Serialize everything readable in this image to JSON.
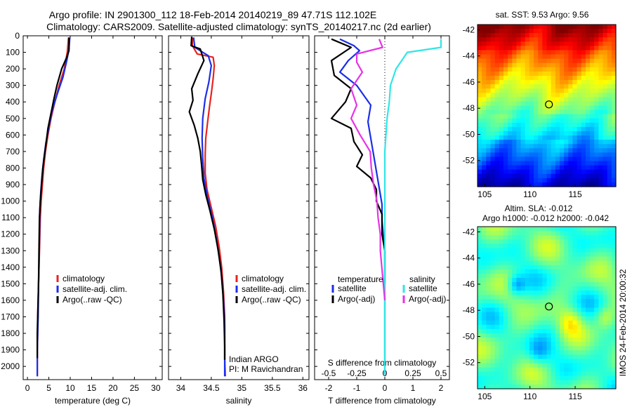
{
  "header": {
    "title_line1": "Argo profile: IN 2901300_112 18-Feb-2014 20140219_89 47.71S 112.102E",
    "title_line2": "Climatology: CARS2009. Satellite-adjusted climatology: synTS_20140217.nc (2d earlier)"
  },
  "colors": {
    "climatology": "#e8231e",
    "satellite": "#1b2ee8",
    "argo": "#000000",
    "satellite_s": "#2fe6e6",
    "argo_s": "#e633e6"
  },
  "depth_ticks": [
    0,
    100,
    200,
    300,
    400,
    500,
    600,
    700,
    800,
    900,
    1000,
    1100,
    1200,
    1300,
    1400,
    1500,
    1600,
    1700,
    1800,
    1900,
    2000
  ],
  "chart_data": [
    {
      "type": "line",
      "id": "temperature",
      "xlabel": "temperature (deg C)",
      "xlim": [
        -1,
        31.5
      ],
      "ylim": [
        2080,
        0
      ],
      "xticks": [
        0,
        5,
        10,
        15,
        20,
        25,
        30
      ],
      "legend": [
        "climatology",
        "satellite-adj. clim.",
        "Argo(..raw -QC)"
      ],
      "legend_placement": "lower-right",
      "series": [
        {
          "name": "climatology",
          "color_key": "climatology",
          "points": [
            [
              9.6,
              10
            ],
            [
              9.3,
              100
            ],
            [
              8.6,
              200
            ],
            [
              7.4,
              300
            ],
            [
              6.4,
              400
            ],
            [
              5.5,
              500
            ],
            [
              4.8,
              600
            ],
            [
              4.2,
              700
            ],
            [
              3.8,
              800
            ],
            [
              3.5,
              900
            ],
            [
              3.2,
              1000
            ],
            [
              3.0,
              1100
            ],
            [
              2.9,
              1200
            ],
            [
              2.8,
              1300
            ],
            [
              2.7,
              1400
            ],
            [
              2.6,
              1500
            ],
            [
              2.5,
              1600
            ],
            [
              2.4,
              1700
            ],
            [
              2.4,
              1800
            ],
            [
              2.3,
              1900
            ],
            [
              2.3,
              2000
            ],
            [
              2.3,
              2060
            ]
          ]
        },
        {
          "name": "satellite-adj. clim.",
          "color_key": "satellite",
          "points": [
            [
              9.9,
              10
            ],
            [
              9.7,
              80
            ],
            [
              9.2,
              150
            ],
            [
              8.3,
              250
            ],
            [
              7.0,
              350
            ],
            [
              5.8,
              450
            ],
            [
              5.0,
              550
            ],
            [
              4.3,
              650
            ],
            [
              3.8,
              750
            ],
            [
              3.4,
              850
            ],
            [
              3.1,
              950
            ],
            [
              2.9,
              1050
            ],
            [
              2.8,
              1200
            ],
            [
              2.7,
              1400
            ],
            [
              2.6,
              1500
            ],
            [
              2.5,
              1700
            ],
            [
              2.4,
              1800
            ],
            [
              2.3,
              1900
            ],
            [
              2.3,
              2000
            ],
            [
              2.3,
              2060
            ]
          ]
        },
        {
          "name": "Argo(..raw -QC)",
          "color_key": "argo",
          "points": [
            [
              9.7,
              10
            ],
            [
              9.7,
              90
            ],
            [
              9.2,
              130
            ],
            [
              8.0,
              200
            ],
            [
              6.9,
              300
            ],
            [
              6.2,
              380
            ],
            [
              5.5,
              470
            ],
            [
              4.8,
              560
            ],
            [
              4.1,
              700
            ],
            [
              3.6,
              800
            ],
            [
              3.3,
              900
            ],
            [
              3.0,
              1000
            ],
            [
              2.8,
              1100
            ],
            [
              2.7,
              1300
            ],
            [
              2.6,
              1500
            ],
            [
              2.5,
              1600
            ],
            [
              2.4,
              1700
            ],
            [
              2.3,
              1800
            ],
            [
              2.3,
              1950
            ]
          ]
        }
      ]
    },
    {
      "type": "line",
      "id": "salinity",
      "xlabel": "salinity",
      "xlim": [
        33.8,
        36.1
      ],
      "ylim": [
        2080,
        0
      ],
      "xticks": [
        34,
        34.5,
        35,
        35.5,
        36
      ],
      "legend": [
        "climatology",
        "satellite-adj. clim.",
        "Argo(..raw -QC)"
      ],
      "legend_placement": "lower-right",
      "annotation": [
        "Indian ARGO",
        "PI: M Ravichandran"
      ],
      "series": [
        {
          "name": "climatology",
          "color_key": "climatology",
          "points": [
            [
              34.19,
              10
            ],
            [
              34.19,
              60
            ],
            [
              34.27,
              110
            ],
            [
              34.53,
              130
            ],
            [
              34.55,
              180
            ],
            [
              34.53,
              260
            ],
            [
              34.5,
              350
            ],
            [
              34.47,
              430
            ],
            [
              34.44,
              520
            ],
            [
              34.41,
              620
            ],
            [
              34.4,
              720
            ],
            [
              34.4,
              830
            ],
            [
              34.43,
              930
            ],
            [
              34.5,
              1040
            ],
            [
              34.57,
              1150
            ],
            [
              34.63,
              1280
            ],
            [
              34.67,
              1400
            ],
            [
              34.7,
              1550
            ],
            [
              34.72,
              1700
            ],
            [
              34.72,
              1850
            ],
            [
              34.72,
              1950
            ],
            [
              34.73,
              2060
            ]
          ]
        },
        {
          "name": "satellite-adj. clim.",
          "color_key": "satellite",
          "points": [
            [
              34.21,
              10
            ],
            [
              34.23,
              70
            ],
            [
              34.45,
              120
            ],
            [
              34.5,
              180
            ],
            [
              34.46,
              280
            ],
            [
              34.4,
              380
            ],
            [
              34.36,
              500
            ],
            [
              34.35,
              620
            ],
            [
              34.36,
              740
            ],
            [
              34.38,
              860
            ],
            [
              34.44,
              980
            ],
            [
              34.52,
              1100
            ],
            [
              34.58,
              1220
            ],
            [
              34.63,
              1340
            ],
            [
              34.67,
              1460
            ],
            [
              34.7,
              1600
            ],
            [
              34.72,
              1750
            ],
            [
              34.72,
              1900
            ],
            [
              34.72,
              2000
            ],
            [
              34.72,
              2060
            ]
          ]
        },
        {
          "name": "Argo(..raw -QC)",
          "color_key": "argo",
          "points": [
            [
              34.18,
              5
            ],
            [
              34.17,
              60
            ],
            [
              34.32,
              80
            ],
            [
              34.38,
              150
            ],
            [
              34.28,
              230
            ],
            [
              34.18,
              320
            ],
            [
              34.2,
              390
            ],
            [
              34.14,
              460
            ],
            [
              34.22,
              540
            ],
            [
              34.28,
              620
            ],
            [
              34.32,
              700
            ],
            [
              34.34,
              780
            ],
            [
              34.36,
              870
            ],
            [
              34.41,
              960
            ],
            [
              34.48,
              1060
            ],
            [
              34.55,
              1170
            ],
            [
              34.61,
              1290
            ],
            [
              34.66,
              1420
            ],
            [
              34.69,
              1560
            ],
            [
              34.71,
              1720
            ],
            [
              34.72,
              1880
            ],
            [
              34.72,
              1960
            ]
          ]
        }
      ]
    },
    {
      "type": "line",
      "id": "difference",
      "xlabel": "T difference from climatology",
      "xlabel_top": "S difference from climatology",
      "xlim": [
        -2.5,
        2.3
      ],
      "ylim": [
        2080,
        0
      ],
      "xticks": [
        -2,
        -1,
        0,
        1,
        2
      ],
      "xticks_s": [
        -0.5,
        -0.25,
        0,
        0.25,
        0.5
      ],
      "xticks_s_labels": [
        "-0.5",
        "-0.25",
        "0",
        "0.25",
        "0.5"
      ],
      "legend": {
        "temperature_heading": "temperature",
        "salinity_heading": "salinity",
        "entries": [
          "satellite",
          "Argo(-adj)",
          "satellite",
          "Argo(-adj)"
        ]
      },
      "legend_placement": "lower-center",
      "series": [
        {
          "name": "temperature satellite",
          "color_key": "satellite",
          "points": [
            [
              -1.6,
              20
            ],
            [
              -1.1,
              60
            ],
            [
              -0.9,
              90
            ],
            [
              -1.3,
              150
            ],
            [
              -1.6,
              220
            ],
            [
              -1.0,
              300
            ],
            [
              -0.5,
              420
            ],
            [
              -0.6,
              520
            ],
            [
              -0.5,
              620
            ],
            [
              -0.4,
              720
            ],
            [
              -0.3,
              820
            ],
            [
              -0.2,
              920
            ],
            [
              -0.1,
              1020
            ],
            [
              -0.1,
              1120
            ],
            [
              0.0,
              1300
            ],
            [
              0.0,
              1500
            ],
            [
              0.0,
              1700
            ],
            [
              0.0,
              1900
            ],
            [
              0.0,
              2050
            ]
          ]
        },
        {
          "name": "temperature Argo(-adj)",
          "color_key": "argo",
          "points": [
            [
              -1.9,
              20
            ],
            [
              -1.2,
              70
            ],
            [
              -1.9,
              150
            ],
            [
              -1.8,
              240
            ],
            [
              -1.2,
              320
            ],
            [
              -1.4,
              400
            ],
            [
              -1.9,
              500
            ],
            [
              -1.2,
              560
            ],
            [
              -1.1,
              640
            ],
            [
              -0.8,
              720
            ],
            [
              -1.0,
              790
            ],
            [
              -0.5,
              860
            ],
            [
              -0.3,
              930
            ],
            [
              -0.3,
              1000
            ],
            [
              -0.1,
              1080
            ],
            [
              -0.1,
              1200
            ],
            [
              0.0,
              1300
            ],
            [
              0.0,
              1400
            ],
            [
              0.0,
              1500
            ]
          ]
        },
        {
          "name": "salinity satellite",
          "color_key": "satellite_s",
          "points": [
            [
              0.5,
              20
            ],
            [
              0.5,
              70
            ],
            [
              0.2,
              100
            ],
            [
              0.1,
              200
            ],
            [
              0.05,
              300
            ],
            [
              0.04,
              400
            ],
            [
              0.02,
              500
            ],
            [
              0.01,
              600
            ],
            [
              0.0,
              700
            ],
            [
              0.0,
              900
            ],
            [
              0.0,
              1100
            ],
            [
              0.0,
              1300
            ],
            [
              0.0,
              1500
            ],
            [
              0.0,
              1800
            ],
            [
              0.0,
              2050
            ]
          ]
        },
        {
          "name": "salinity Argo(-adj)",
          "color_key": "argo_s",
          "points": [
            [
              -0.05,
              20
            ],
            [
              -0.02,
              70
            ],
            [
              -0.25,
              110
            ],
            [
              -0.25,
              160
            ],
            [
              -0.2,
              220
            ],
            [
              -0.3,
              320
            ],
            [
              -0.25,
              420
            ],
            [
              -0.3,
              500
            ],
            [
              -0.22,
              600
            ],
            [
              -0.13,
              700
            ],
            [
              -0.12,
              800
            ],
            [
              -0.1,
              900
            ],
            [
              -0.07,
              1000
            ],
            [
              -0.06,
              1100
            ],
            [
              -0.04,
              1200
            ],
            [
              -0.04,
              1300
            ],
            [
              -0.02,
              1450
            ],
            [
              0.0,
              1600
            ]
          ]
        }
      ]
    },
    {
      "type": "heatmap",
      "id": "sst_map",
      "title": "sat. SST: 9.53 Argo: 9.56",
      "xticks": [
        105,
        110,
        115
      ],
      "yticks": [
        -42,
        -44,
        -46,
        -48,
        -50,
        -52
      ],
      "xlim": [
        104.2,
        119.5
      ],
      "ylim": [
        -54,
        -41.6
      ],
      "marker": [
        112.1,
        -47.71
      ],
      "colormap": "jet"
    },
    {
      "type": "heatmap",
      "id": "sla_map",
      "title_line1": "Altim. SLA: -0.012",
      "title_line2": "Argo h1000: -0.012 h2000: -0.042",
      "xticks": [
        105,
        110,
        115
      ],
      "yticks": [
        -42,
        -44,
        -46,
        -48,
        -50,
        -52
      ],
      "xlim": [
        104.2,
        119.5
      ],
      "ylim": [
        -54,
        -41.6
      ],
      "marker": [
        112.1,
        -47.71
      ],
      "colormap": "jet"
    }
  ],
  "side_label": "IMOS 24-Feb-2014 20:00:32"
}
